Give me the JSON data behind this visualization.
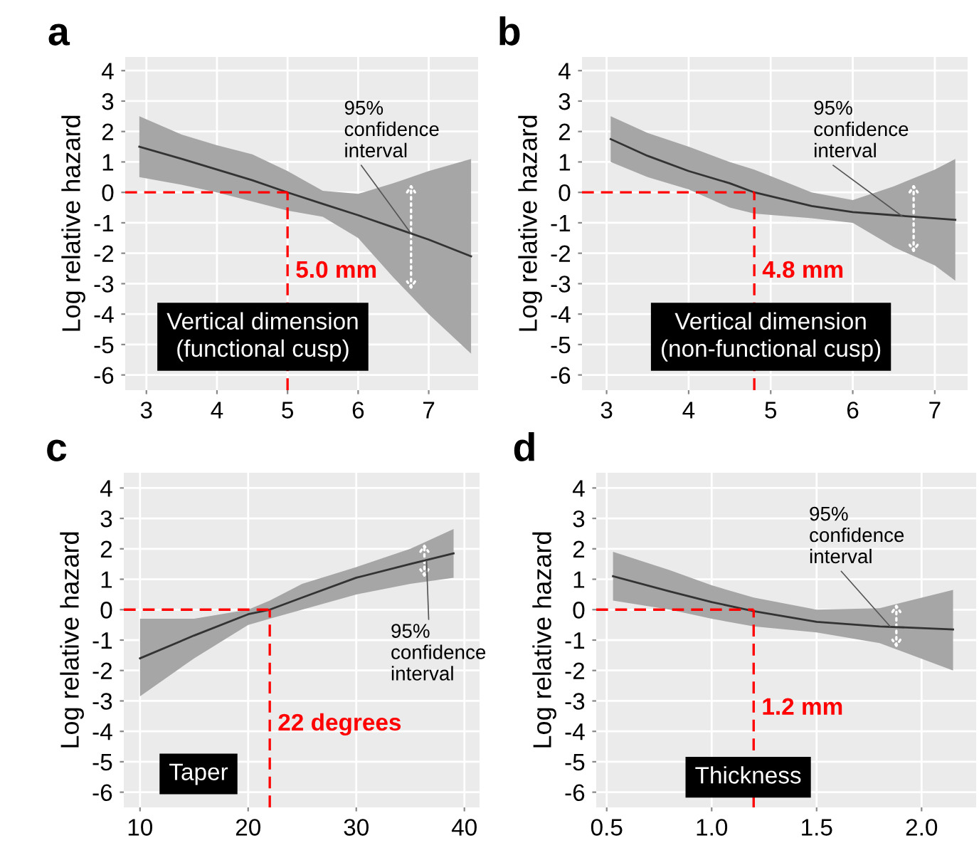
{
  "chart_data": [
    {
      "type": "line",
      "title": "a",
      "ylabel": "Log relative hazard",
      "xlim": [
        2.7,
        7.7
      ],
      "ylim": [
        -6.5,
        4.45
      ],
      "xticks": [
        3,
        4,
        5,
        6,
        7
      ],
      "yticks": [
        -6,
        -5,
        -4,
        -3,
        -2,
        -1,
        0,
        1,
        2,
        3,
        4
      ],
      "grid": true,
      "legend": false,
      "series": [
        {
          "color": "#333333",
          "x": [
            2.9,
            3.5,
            4,
            4.5,
            5,
            5.5,
            6,
            6.5,
            7,
            7.6
          ],
          "values": [
            1.5,
            1.1,
            0.75,
            0.4,
            0.0,
            -0.38,
            -0.75,
            -1.15,
            -1.55,
            -2.1
          ],
          "lower": [
            0.5,
            0.25,
            0.0,
            -0.3,
            -0.6,
            -0.8,
            -1.5,
            -2.8,
            -4.0,
            -5.3
          ],
          "upper": [
            2.5,
            1.9,
            1.55,
            1.25,
            0.7,
            0.05,
            -0.05,
            0.3,
            0.7,
            1.1
          ]
        }
      ],
      "ref_lines": [
        {
          "axis": "x",
          "value": 5.0,
          "label": "5.0 mm",
          "color": "#ff0000",
          "line_style": "dashed"
        },
        {
          "axis": "y",
          "value": 0,
          "color": "#ff0000",
          "line_style": "dashed"
        }
      ],
      "annotations": [
        {
          "text": "95%\nconfidence\ninterval",
          "x": 6.75,
          "y": -1.35
        },
        "Vertical dimension\n(functional cusp)"
      ]
    },
    {
      "type": "line",
      "title": "b",
      "ylabel": "Log relative hazard",
      "xlim": [
        2.7,
        7.4
      ],
      "ylim": [
        -6.5,
        4.45
      ],
      "xticks": [
        3,
        4,
        5,
        6,
        7
      ],
      "yticks": [
        -6,
        -5,
        -4,
        -3,
        -2,
        -1,
        0,
        1,
        2,
        3,
        4
      ],
      "grid": true,
      "legend": false,
      "series": [
        {
          "color": "#333333",
          "x": [
            3.05,
            3.5,
            4,
            4.5,
            4.8,
            5.5,
            6,
            6.5,
            7,
            7.25
          ],
          "values": [
            1.75,
            1.2,
            0.7,
            0.3,
            0.0,
            -0.45,
            -0.65,
            -0.75,
            -0.85,
            -0.9
          ],
          "lower": [
            1.0,
            0.5,
            0.1,
            -0.5,
            -0.7,
            -0.85,
            -1.0,
            -1.8,
            -2.4,
            -2.9
          ],
          "upper": [
            2.5,
            1.95,
            1.5,
            1.0,
            0.75,
            0.0,
            -0.25,
            0.2,
            0.75,
            1.1
          ]
        }
      ],
      "ref_lines": [
        {
          "axis": "x",
          "value": 4.8,
          "label": "4.8 mm",
          "color": "#ff0000",
          "line_style": "dashed"
        },
        {
          "axis": "y",
          "value": 0,
          "color": "#ff0000",
          "line_style": "dashed"
        }
      ],
      "annotations": [
        {
          "text": "95%\nconfidence\ninterval",
          "x": 6.6,
          "y": -0.78
        },
        "Vertical dimension\n(non-functional cusp)"
      ]
    },
    {
      "type": "line",
      "title": "c",
      "ylabel": "Log relative hazard",
      "xlim": [
        8.5,
        41.4
      ],
      "ylim": [
        -6.5,
        4.5
      ],
      "xticks": [
        10,
        20,
        30,
        40
      ],
      "yticks": [
        -6,
        -5,
        -4,
        -3,
        -2,
        -1,
        0,
        1,
        2,
        3,
        4
      ],
      "grid": true,
      "legend": false,
      "series": [
        {
          "color": "#333333",
          "x": [
            10,
            15,
            20,
            22,
            25,
            30,
            35,
            39
          ],
          "values": [
            -1.6,
            -0.85,
            -0.15,
            0.0,
            0.4,
            1.05,
            1.5,
            1.85
          ],
          "lower": [
            -2.85,
            -1.6,
            -0.5,
            -0.3,
            0.0,
            0.5,
            0.85,
            1.05
          ],
          "upper": [
            -0.3,
            -0.3,
            0.0,
            0.3,
            0.85,
            1.4,
            2.0,
            2.65
          ]
        }
      ],
      "ref_lines": [
        {
          "axis": "x",
          "value": 22,
          "label": "22 degrees",
          "color": "#ff0000",
          "line_style": "dashed"
        },
        {
          "axis": "y",
          "value": 0,
          "color": "#ff0000",
          "line_style": "dashed"
        }
      ],
      "annotations": [
        {
          "text": "95%\nconfidence\ninterval",
          "x": 36.5,
          "y": 1.6
        },
        "Taper"
      ]
    },
    {
      "type": "line",
      "title": "d",
      "ylabel": "Log relative hazard",
      "xlim": [
        0.45,
        2.26
      ],
      "ylim": [
        -6.5,
        4.5
      ],
      "xticks": [
        {
          "value": 0.5,
          "label": "0.5"
        },
        {
          "value": 1.0,
          "label": "1.0"
        },
        {
          "value": 1.5,
          "label": "1.5"
        },
        {
          "value": 2.0,
          "label": "2.0"
        }
      ],
      "yticks": [
        -6,
        -5,
        -4,
        -3,
        -2,
        -1,
        0,
        1,
        2,
        3,
        4
      ],
      "grid": true,
      "legend": false,
      "series": [
        {
          "color": "#333333",
          "x": [
            0.53,
            0.8,
            1.0,
            1.2,
            1.5,
            1.8,
            2.15
          ],
          "values": [
            1.1,
            0.6,
            0.25,
            -0.05,
            -0.4,
            -0.55,
            -0.65
          ],
          "lower": [
            0.3,
            0.0,
            -0.3,
            -0.55,
            -0.75,
            -1.1,
            -2.0
          ],
          "upper": [
            1.9,
            1.3,
            0.8,
            0.4,
            0.0,
            0.05,
            0.65
          ]
        }
      ],
      "ref_lines": [
        {
          "axis": "x",
          "value": 1.2,
          "label": "1.2 mm",
          "color": "#ff0000",
          "line_style": "dashed"
        },
        {
          "axis": "y",
          "value": 0,
          "color": "#ff0000",
          "line_style": "dashed"
        }
      ],
      "annotations": [
        {
          "text": "95%\nconfidence\ninterval",
          "x": 1.85,
          "y": -0.55
        },
        "Thickness"
      ]
    }
  ]
}
